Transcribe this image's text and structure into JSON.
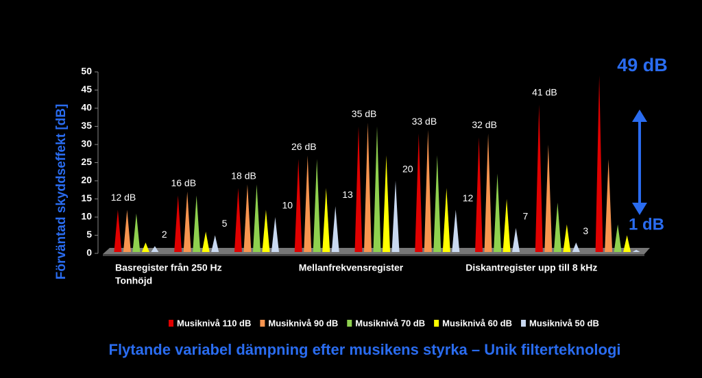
{
  "chart_data": {
    "type": "cone-bar",
    "title": "Flytande variabel dämpning efter musikens styrka – Unik filterteknologi",
    "y_label": "Förväntad skyddseffekt [dB]",
    "x_label": "Tonhöjd",
    "categories": [
      null,
      "Basregister från 250 Hz",
      null,
      null,
      "Mellanfrekvensregister",
      null,
      null,
      "Diskantregister upp till 8 kHz",
      null
    ],
    "ylim": [
      0,
      50
    ],
    "yticks": [
      0,
      5,
      10,
      15,
      20,
      25,
      30,
      35,
      40,
      45,
      50
    ],
    "series": [
      {
        "name": "Musiknivå 110 dB",
        "color": "#e00000",
        "values": [
          12,
          16,
          18,
          26,
          35,
          33,
          32,
          41,
          49
        ],
        "value_labels": [
          "12 dB",
          "16 dB",
          "18 dB",
          "26 dB",
          "35 dB",
          "33 dB",
          "32 dB",
          "41 dB",
          "49 dB"
        ]
      },
      {
        "name": "Musiknivå 90 dB",
        "color": "#f7944f",
        "values": [
          12,
          17,
          19,
          27,
          36,
          34,
          33,
          30,
          26
        ]
      },
      {
        "name": "Musiknivå 70 dB",
        "color": "#8fd14f",
        "values": [
          11,
          16,
          19,
          26,
          35,
          27,
          22,
          14,
          8
        ]
      },
      {
        "name": "Musiknivå 60 dB",
        "color": "#ffff00",
        "values": [
          3,
          6,
          12,
          18,
          27,
          18,
          15,
          8,
          5
        ]
      },
      {
        "name": "Musiknivå 50 dB",
        "color": "#c8d8f0",
        "values": [
          2,
          5,
          10,
          13,
          20,
          12,
          7,
          3,
          1
        ],
        "value_labels": [
          "2",
          "5",
          "10",
          "13",
          "20",
          "12",
          "7",
          "3",
          "1 dB"
        ]
      }
    ]
  }
}
